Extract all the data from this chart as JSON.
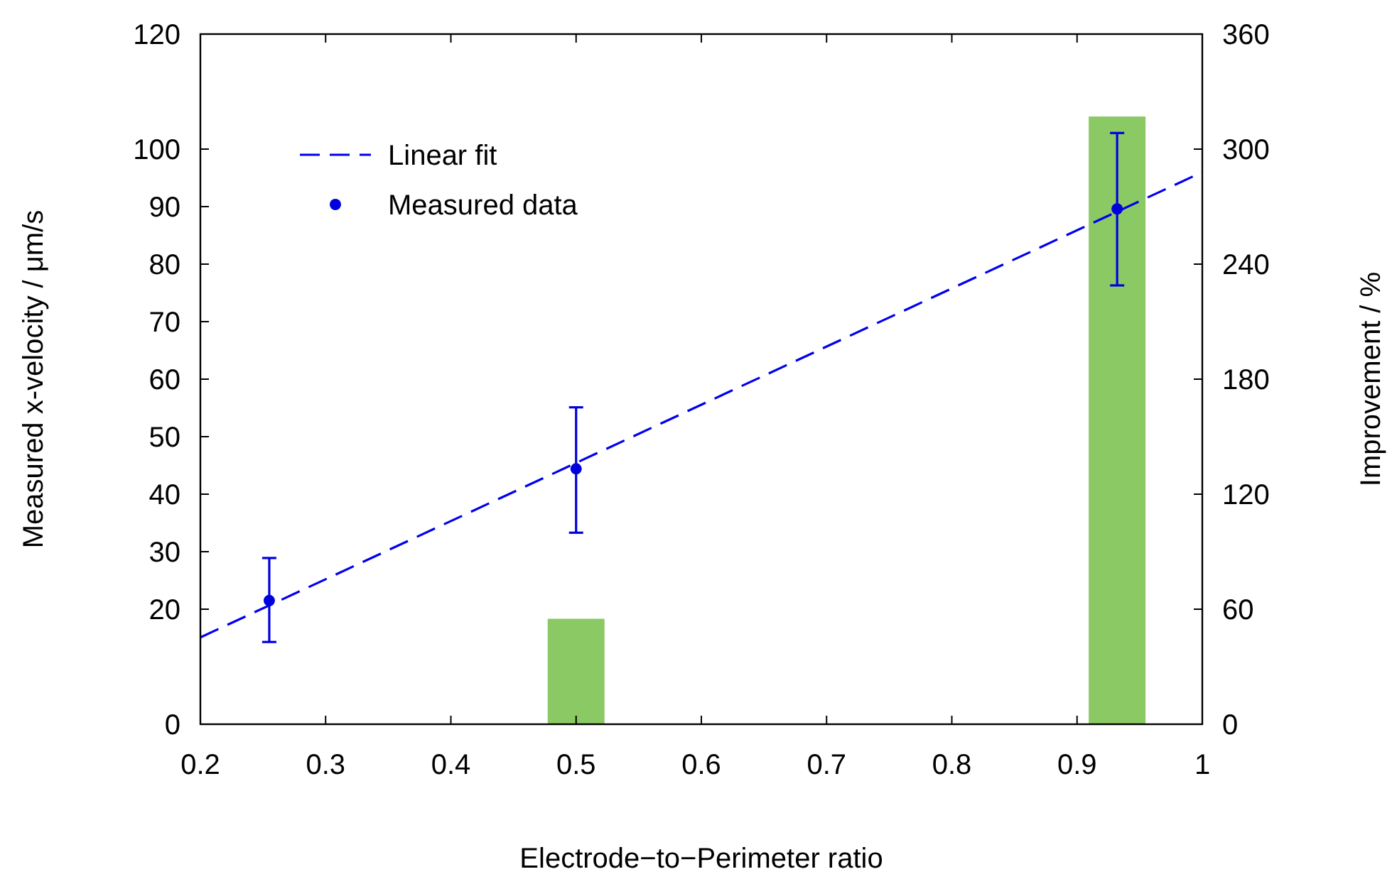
{
  "chart_data": {
    "type": "scatter",
    "xlabel": "Electrode−to−Perimeter ratio",
    "ylabel": "Measured x-velocity  /  μm/s",
    "y2label": "Improvement  /  %",
    "xlim": [
      0.2,
      1
    ],
    "xticks": [
      0.2,
      0.3,
      0.4,
      0.5,
      0.6,
      0.7,
      0.8,
      0.9,
      1
    ],
    "ylim": [
      0,
      120
    ],
    "yticks": [
      0,
      20,
      30,
      40,
      50,
      60,
      70,
      80,
      90,
      100,
      120
    ],
    "y2lim": [
      0,
      360
    ],
    "y2ticks": [
      0,
      60,
      120,
      180,
      240,
      300,
      360
    ],
    "legend": "top left",
    "grid": false,
    "series": [
      {
        "type": "bar",
        "axis": "y2",
        "color": "#8bc964",
        "x": [
          0.5,
          0.932
        ],
        "values": [
          55,
          317
        ]
      },
      {
        "type": "line",
        "name": "Linear fit",
        "color": "#0000ee",
        "line_style": "dashed",
        "marker": "none",
        "x": [
          0.2,
          1
        ],
        "values": [
          15.1,
          96
        ]
      },
      {
        "name": "Measured data",
        "color": "#0000dd",
        "marker": "circle",
        "x": [
          0.255,
          0.5,
          0.932
        ],
        "values": [
          21.5,
          44.4,
          89.6
        ],
        "errors": [
          [
            14.3,
            28.9
          ],
          [
            33.3,
            55.1
          ],
          [
            76.3,
            102.8
          ]
        ]
      }
    ]
  }
}
